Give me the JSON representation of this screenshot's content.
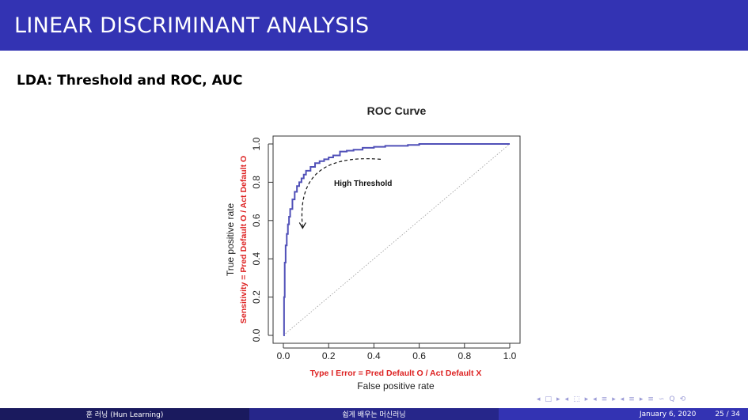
{
  "header": {
    "title": "LINEAR DISCRIMINANT ANALYSIS"
  },
  "slide": {
    "subtitle": "LDA: Threshold and ROC, AUC"
  },
  "chart_data": {
    "type": "line",
    "title": "ROC Curve",
    "xlabel": "False positive rate",
    "xlabel_extra": "Type I Error = Pred Default O / Act Default X",
    "ylabel": "True positive rate",
    "ylabel_extra": "Sensitivity = Pred Default O / Act Default O",
    "xlim": [
      0,
      1
    ],
    "ylim": [
      0,
      1
    ],
    "x_ticks": [
      "0.0",
      "0.2",
      "0.4",
      "0.6",
      "0.8",
      "1.0"
    ],
    "y_ticks": [
      "0.0",
      "0.2",
      "0.4",
      "0.6",
      "0.8",
      "1.0"
    ],
    "grid": false,
    "series": [
      {
        "color": "#5050b8",
        "x": [
          0,
          0.003,
          0.006,
          0.01,
          0.015,
          0.02,
          0.025,
          0.03,
          0.04,
          0.05,
          0.06,
          0.07,
          0.08,
          0.09,
          0.1,
          0.12,
          0.14,
          0.16,
          0.18,
          0.2,
          0.22,
          0.25,
          0.28,
          0.31,
          0.35,
          0.4,
          0.45,
          0.5,
          0.55,
          0.6,
          0.65,
          0.7,
          0.8,
          0.9,
          1.0
        ],
        "y": [
          0,
          0.2,
          0.38,
          0.47,
          0.53,
          0.58,
          0.62,
          0.66,
          0.71,
          0.75,
          0.78,
          0.8,
          0.82,
          0.84,
          0.86,
          0.88,
          0.9,
          0.91,
          0.92,
          0.93,
          0.94,
          0.96,
          0.965,
          0.97,
          0.98,
          0.985,
          0.99,
          0.99,
          0.995,
          1.0,
          1.0,
          1.0,
          1.0,
          1.0,
          1.0
        ]
      }
    ],
    "reference_line": {
      "x": [
        0,
        1
      ],
      "y": [
        0,
        1
      ],
      "style": "dotted",
      "color": "#9a9a9a"
    },
    "annotation": {
      "text": "High Threshold",
      "arrow_from": [
        0.43,
        0.92
      ],
      "arrow_to": [
        0.085,
        0.56
      ]
    },
    "colors": {
      "curve": "#5050b8",
      "red_label": "#dd2222"
    }
  },
  "nav": {
    "icons": [
      "◂",
      "□",
      "▸",
      "◂",
      "⬚",
      "▸",
      "◂",
      "≡",
      "▸",
      "◂",
      "≡",
      "▸",
      "≡",
      "∽",
      "Q",
      "⟲"
    ]
  },
  "footer": {
    "author": "훈 러닝 (Hun Learning)",
    "course": "쉽게 배우는 머신러닝",
    "date": "January 6, 2020",
    "page": "25 / 34"
  }
}
